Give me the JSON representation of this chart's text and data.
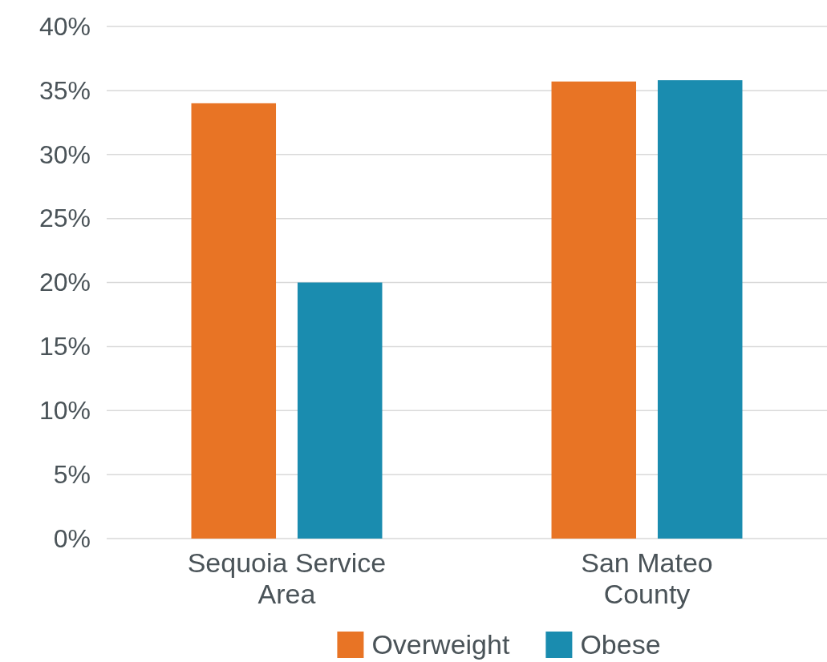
{
  "chart_data": {
    "type": "bar",
    "categories": [
      "Sequoia Service Area",
      "San Mateo County"
    ],
    "series": [
      {
        "name": "Overweight",
        "color": "#e87425",
        "values": [
          34,
          35.7
        ]
      },
      {
        "name": "Obese",
        "color": "#1a8caf",
        "values": [
          20,
          35.8
        ]
      }
    ],
    "ylim": [
      0,
      40
    ],
    "yticks": [
      {
        "value": 0,
        "label": "0%"
      },
      {
        "value": 5,
        "label": "5%"
      },
      {
        "value": 10,
        "label": "10%"
      },
      {
        "value": 15,
        "label": "15%"
      },
      {
        "value": 20,
        "label": "20%"
      },
      {
        "value": 25,
        "label": "25%"
      },
      {
        "value": 30,
        "label": "30%"
      },
      {
        "value": 35,
        "label": "35%"
      },
      {
        "value": 40,
        "label": "40%"
      }
    ],
    "grid": "y",
    "legend": "bottom"
  }
}
